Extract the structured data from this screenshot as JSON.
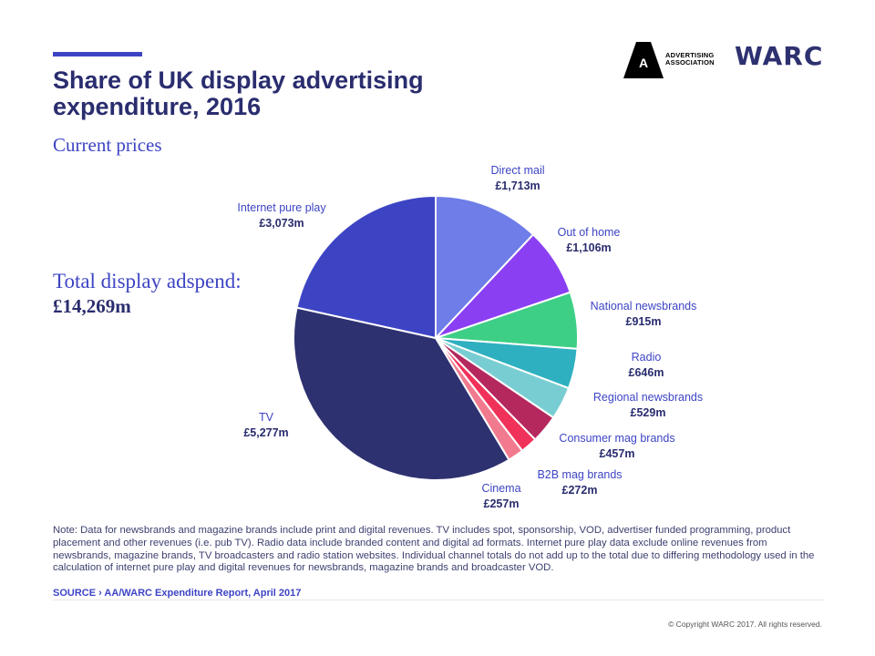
{
  "header": {
    "title": "Share of UK display advertising\nexpenditure, 2016",
    "subtitle": "Current prices"
  },
  "total": {
    "label": "Total display adspend:",
    "value": "£14,269m"
  },
  "logos": {
    "aa_text": "ADVERTISING\nASSOCIATION",
    "aa_mark": "A",
    "warc": "WARC"
  },
  "colors": {
    "title": "#2a2d6e",
    "accent": "#3d44c4"
  },
  "chart_data": {
    "type": "pie",
    "unit": "£m",
    "slices": [
      {
        "label": "Direct mail",
        "value": 1713,
        "display": "£1,713m",
        "color": "#6e7de8"
      },
      {
        "label": "Out of home",
        "value": 1106,
        "display": "£1,106m",
        "color": "#8a3ff2"
      },
      {
        "label": "National newsbrands",
        "value": 915,
        "display": "£915m",
        "color": "#3ecf86"
      },
      {
        "label": "Radio",
        "value": 646,
        "display": "£646m",
        "color": "#2fb0c0"
      },
      {
        "label": "Regional newsbrands",
        "value": 529,
        "display": "£529m",
        "color": "#78cdd2"
      },
      {
        "label": "Consumer mag brands",
        "value": 457,
        "display": "£457m",
        "color": "#b4285e"
      },
      {
        "label": "B2B mag brands",
        "value": 272,
        "display": "£272m",
        "color": "#f0325a"
      },
      {
        "label": "Cinema",
        "value": 257,
        "display": "£257m",
        "color": "#f27a8e"
      },
      {
        "label": "TV",
        "value": 5277,
        "display": "£5,277m",
        "color": "#2e3170"
      },
      {
        "label": "Internet pure play",
        "value": 3073,
        "display": "£3,073m",
        "color": "#3d44c4"
      }
    ]
  },
  "footer": {
    "note": "Note: Data for newsbrands and magazine brands include print and digital revenues. TV includes spot, sponsorship, VOD, advertiser funded programming, product placement and other revenues (i.e. pub TV). Radio data include branded content and digital ad formats. Internet pure play data exclude online revenues from newsbrands, magazine brands, TV broadcasters and radio station websites. Individual channel totals do not add up to the total due to differing methodology used in the calculation of internet pure play and digital revenues for newsbrands, magazine brands and broadcaster VOD.",
    "source": "SOURCE › AA/WARC Expenditure Report, April 2017",
    "copyright": "© Copyright WARC 2017. All rights reserved."
  }
}
